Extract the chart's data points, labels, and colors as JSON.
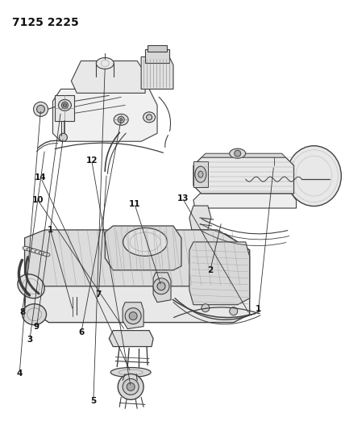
{
  "title": "7125 2225",
  "title_fontsize": 10,
  "title_fontweight": "bold",
  "bg_color": "#ffffff",
  "line_color": "#404040",
  "label_color": "#111111",
  "label_fontsize": 7.5,
  "fig_width": 4.28,
  "fig_height": 5.33,
  "dpi": 100,
  "labels": {
    "4": [
      0.055,
      0.87,
      "4"
    ],
    "5": [
      0.27,
      0.933,
      "5"
    ],
    "3": [
      0.085,
      0.79,
      "3"
    ],
    "6": [
      0.235,
      0.773,
      "6"
    ],
    "9": [
      0.105,
      0.76,
      "9"
    ],
    "8": [
      0.063,
      0.726,
      "8"
    ],
    "7": [
      0.285,
      0.685,
      "7"
    ],
    "1t": [
      0.75,
      0.72,
      "1"
    ],
    "2": [
      0.61,
      0.628,
      "2"
    ],
    "1b": [
      0.145,
      0.535,
      "1"
    ],
    "11": [
      0.39,
      0.475,
      "11"
    ],
    "10": [
      0.108,
      0.465,
      "10"
    ],
    "13": [
      0.53,
      0.462,
      "13"
    ],
    "14": [
      0.117,
      0.413,
      "14"
    ],
    "12": [
      0.265,
      0.373,
      "12"
    ]
  }
}
